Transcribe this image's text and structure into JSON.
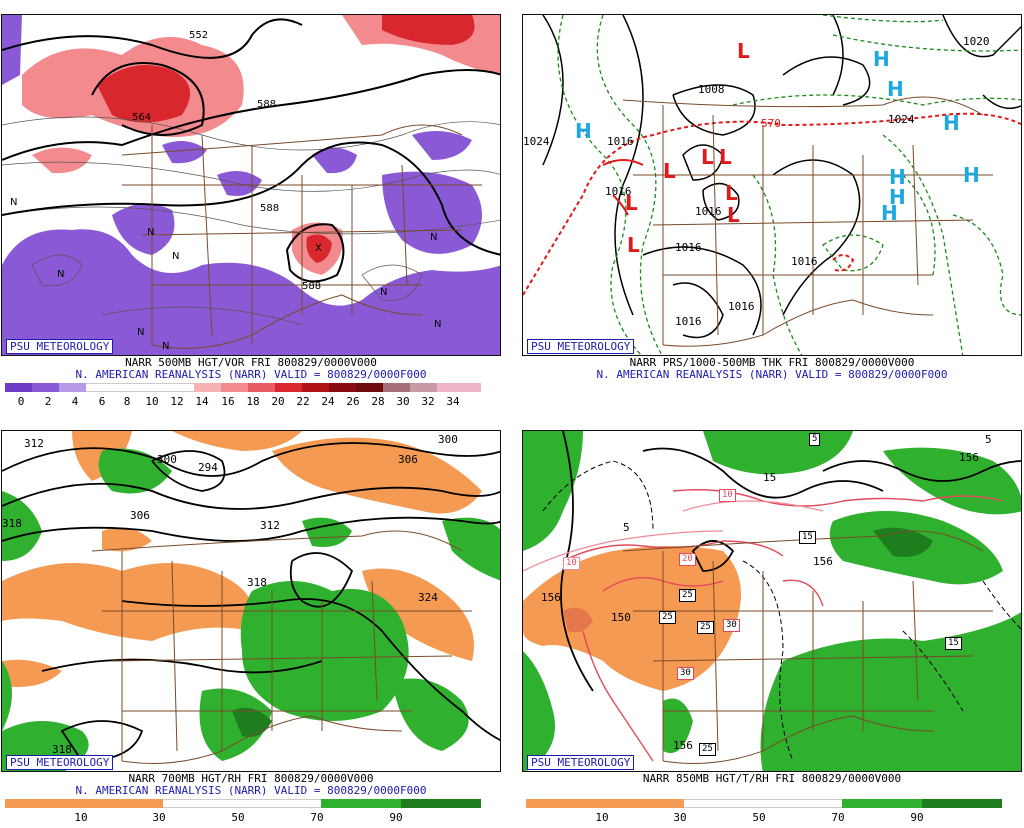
{
  "panels": [
    {
      "id": "p500",
      "badge": "PSU METEOROLOGY",
      "line1": "NARR 500MB HGT/VOR FRI 800829/0000V000",
      "line2": "N. AMERICAN REANALYSIS (NARR) VALID = 800829/0000F000",
      "legend": [
        "0",
        "2",
        "4",
        "6",
        "8",
        "10",
        "12",
        "14",
        "16",
        "18",
        "20",
        "22",
        "24",
        "26",
        "28",
        "30",
        "32",
        "34"
      ],
      "contour_labels": [
        "552",
        "564",
        "588",
        "588",
        "588"
      ],
      "centers": [
        "N",
        "N",
        "N",
        "N",
        "N",
        "N",
        "N",
        "N",
        "N",
        "X"
      ]
    },
    {
      "id": "psfc",
      "badge": "PSU METEOROLOGY",
      "line1": "NARR PRS/1000-500MB THK FRI 800829/0000V000",
      "line2": "N. AMERICAN REANALYSIS (NARR) VALID = 800829/0000F000",
      "contour_labels": [
        "1008",
        "1016",
        "1016",
        "1016",
        "1016",
        "1016",
        "1024",
        "1024",
        "1016",
        "570",
        "1020"
      ],
      "highs": [
        "H",
        "H",
        "H",
        "H",
        "H",
        "H",
        "H",
        "H"
      ],
      "lows": [
        "L",
        "L",
        "L",
        "L",
        "L",
        "L",
        "L",
        "L"
      ]
    },
    {
      "id": "p700",
      "badge": "PSU METEOROLOGY",
      "line1": "NARR 700MB HGT/RH FRI 800829/0000V000",
      "line2": "N. AMERICAN REANALYSIS (NARR) VALID = 800829/0000F000",
      "legend": [
        "10",
        "30",
        "50",
        "70",
        "90"
      ],
      "contour_labels": [
        "312",
        "300",
        "294",
        "306",
        "300",
        "306",
        "318",
        "312",
        "318",
        "324",
        "318"
      ]
    },
    {
      "id": "p850",
      "badge": "PSU METEOROLOGY",
      "line1": "NARR 850MB HGT/T/RH FRI 800829/0000V000",
      "line2": "",
      "legend": [
        "10",
        "30",
        "50",
        "70",
        "90"
      ],
      "contour_labels": [
        "156",
        "150",
        "156",
        "156",
        "156",
        "15",
        "5",
        "5",
        "10"
      ],
      "boxed_labels": [
        "10",
        "20",
        "25",
        "25",
        "25",
        "30",
        "30",
        "25",
        "15",
        "15",
        "5"
      ]
    }
  ],
  "colors": {
    "vor_purple": "#8a5ad6",
    "vor_red": "#e0383c",
    "rh_orange": "#f59a52",
    "rh_green": "#2fb02f",
    "border_brown": "#7a4a2a",
    "label_blue": "#1b1bb0",
    "high_blue": "#1ea8e0",
    "low_red": "#e01a1a"
  }
}
